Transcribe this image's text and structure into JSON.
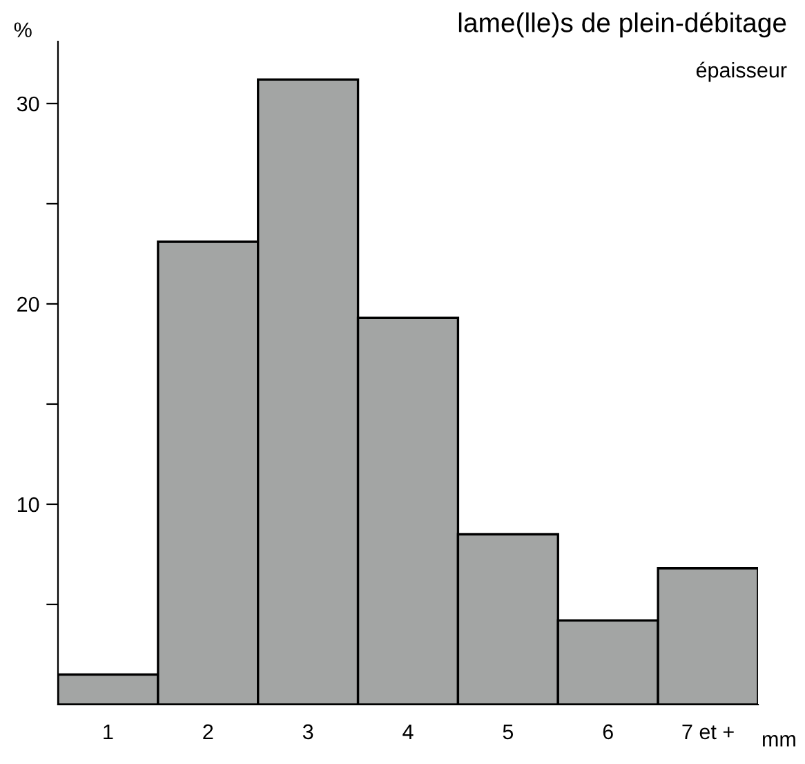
{
  "chart_data": {
    "type": "bar",
    "title": "lame(lle)s de plein-débitage",
    "annotations": [
      "épaisseur"
    ],
    "xlabel": "mm",
    "ylabel": "%",
    "categories": [
      "1",
      "2",
      "3",
      "4",
      "5",
      "6",
      "7 et +"
    ],
    "values": [
      1.5,
      23.1,
      31.2,
      19.3,
      8.5,
      4.2,
      6.8
    ],
    "color": "#a3a5a4",
    "ylim": [
      0,
      33.1
    ],
    "yticks": [
      {
        "value": 5,
        "label": null
      },
      10,
      {
        "value": 15,
        "label": null
      },
      20,
      {
        "value": 25,
        "label": null
      },
      30
    ],
    "grid": false,
    "legend": false
  }
}
